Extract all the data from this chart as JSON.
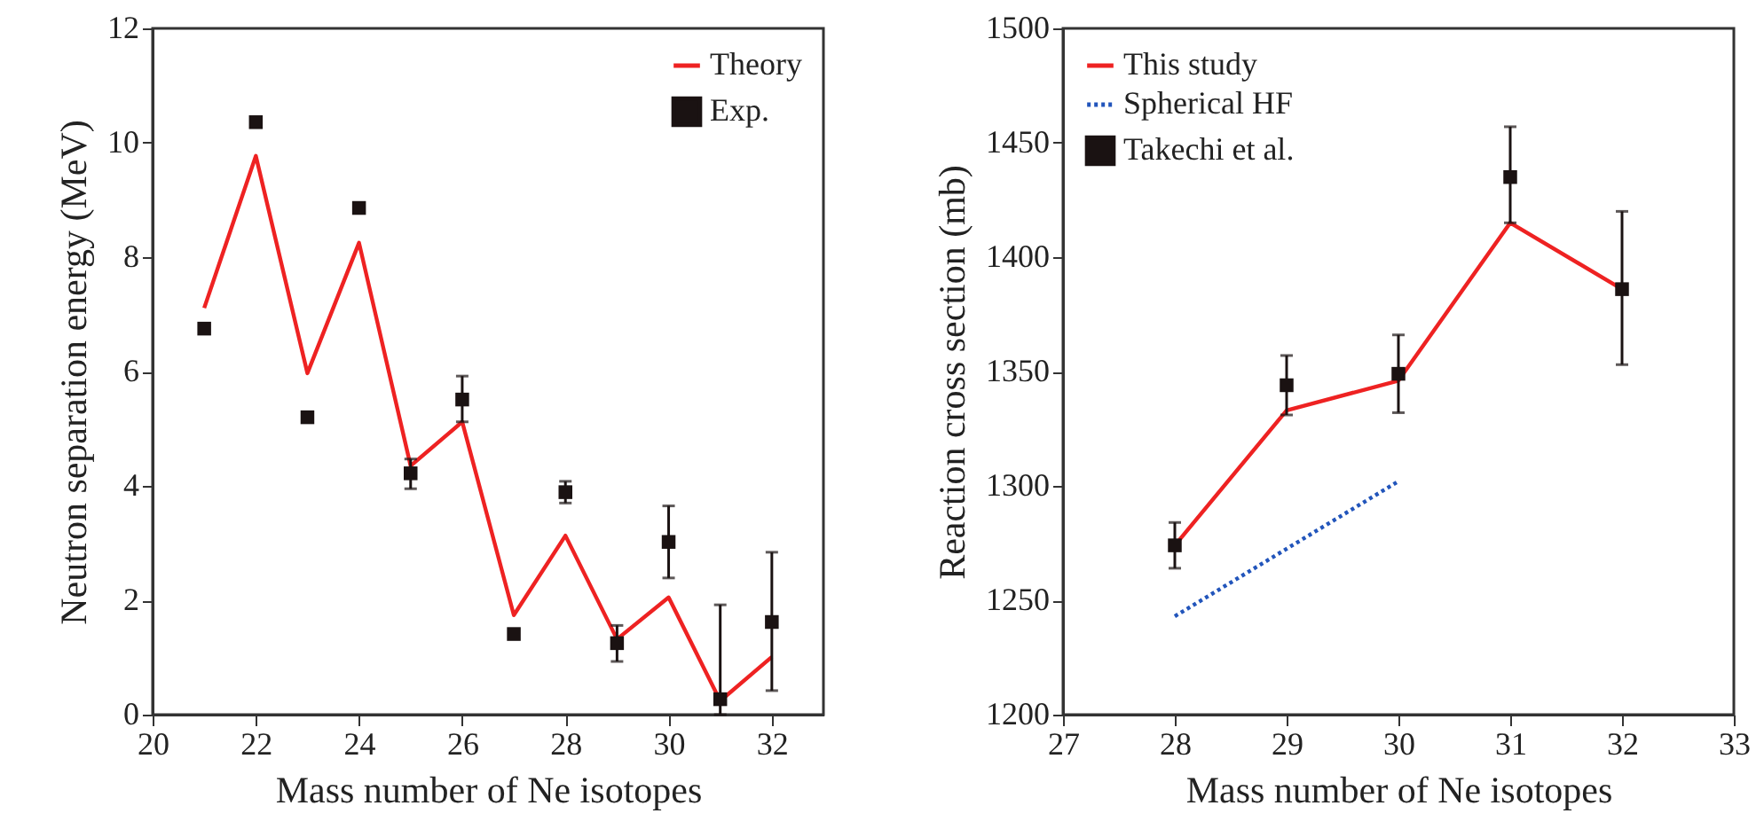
{
  "chart_data": [
    {
      "type": "line",
      "xlabel": "Mass number of Ne isotopes",
      "ylabel": "Neutron separation energy (MeV)",
      "xlim": [
        20,
        33
      ],
      "xticks": [
        20,
        22,
        24,
        26,
        28,
        30,
        32
      ],
      "ylim": [
        0,
        12
      ],
      "yticks": [
        0,
        2,
        4,
        6,
        8,
        10,
        12
      ],
      "legend": "top right",
      "grid": false,
      "series": [
        {
          "name": "Theory",
          "color": "#ee2222",
          "x": [
            21,
            22,
            23,
            24,
            25,
            26,
            27,
            28,
            29,
            30,
            31,
            32
          ],
          "values": [
            7.11,
            9.77,
            5.97,
            8.25,
            4.35,
            5.12,
            1.74,
            3.13,
            1.32,
            2.05,
            0.24,
            1.01
          ]
        },
        {
          "name": "Exp.",
          "type": "scatter",
          "marker": "square",
          "color": "#1a1212",
          "x": [
            21,
            22,
            23,
            24,
            25,
            26,
            27,
            28,
            29,
            30,
            31,
            32
          ],
          "values": [
            6.75,
            10.36,
            5.2,
            8.86,
            4.22,
            5.51,
            1.41,
            3.89,
            1.25,
            3.02,
            0.27,
            1.62
          ],
          "errors": [
            null,
            null,
            null,
            null,
            [
              3.95,
              4.47
            ],
            [
              5.12,
              5.92
            ],
            [
              1.33,
              1.49
            ],
            [
              3.7,
              4.08
            ],
            [
              0.93,
              1.56
            ],
            [
              2.39,
              3.65
            ],
            [
              0,
              1.92
            ],
            [
              0.42,
              2.84
            ]
          ]
        }
      ]
    },
    {
      "type": "line",
      "xlabel": "Mass number of Ne isotopes",
      "ylabel": "Reaction cross section (mb)",
      "xlim": [
        27,
        33
      ],
      "xticks": [
        27,
        28,
        29,
        30,
        31,
        32,
        33
      ],
      "ylim": [
        1200,
        1500
      ],
      "yticks": [
        1200,
        1250,
        1300,
        1350,
        1400,
        1450,
        1500
      ],
      "legend": "top left",
      "grid": false,
      "series": [
        {
          "name": "This study",
          "color": "#ee2222",
          "x": [
            28,
            29,
            30,
            31,
            32
          ],
          "values": [
            1274,
            1333,
            1346,
            1415,
            1386
          ]
        },
        {
          "name": "Spherical HF",
          "type": "line",
          "line_style": "dotted",
          "color": "#2255bb",
          "x": [
            28,
            30
          ],
          "values": [
            1243,
            1302
          ]
        },
        {
          "name": "Takechi et al.",
          "type": "scatter",
          "marker": "square",
          "color": "#1a1212",
          "x": [
            28,
            29,
            30,
            31,
            32
          ],
          "values": [
            1274,
            1344,
            1349,
            1435,
            1386
          ],
          "errors": [
            [
              1264,
              1284
            ],
            [
              1331,
              1357
            ],
            [
              1332,
              1366
            ],
            [
              1415,
              1457
            ],
            [
              1353,
              1420
            ]
          ]
        }
      ]
    }
  ]
}
